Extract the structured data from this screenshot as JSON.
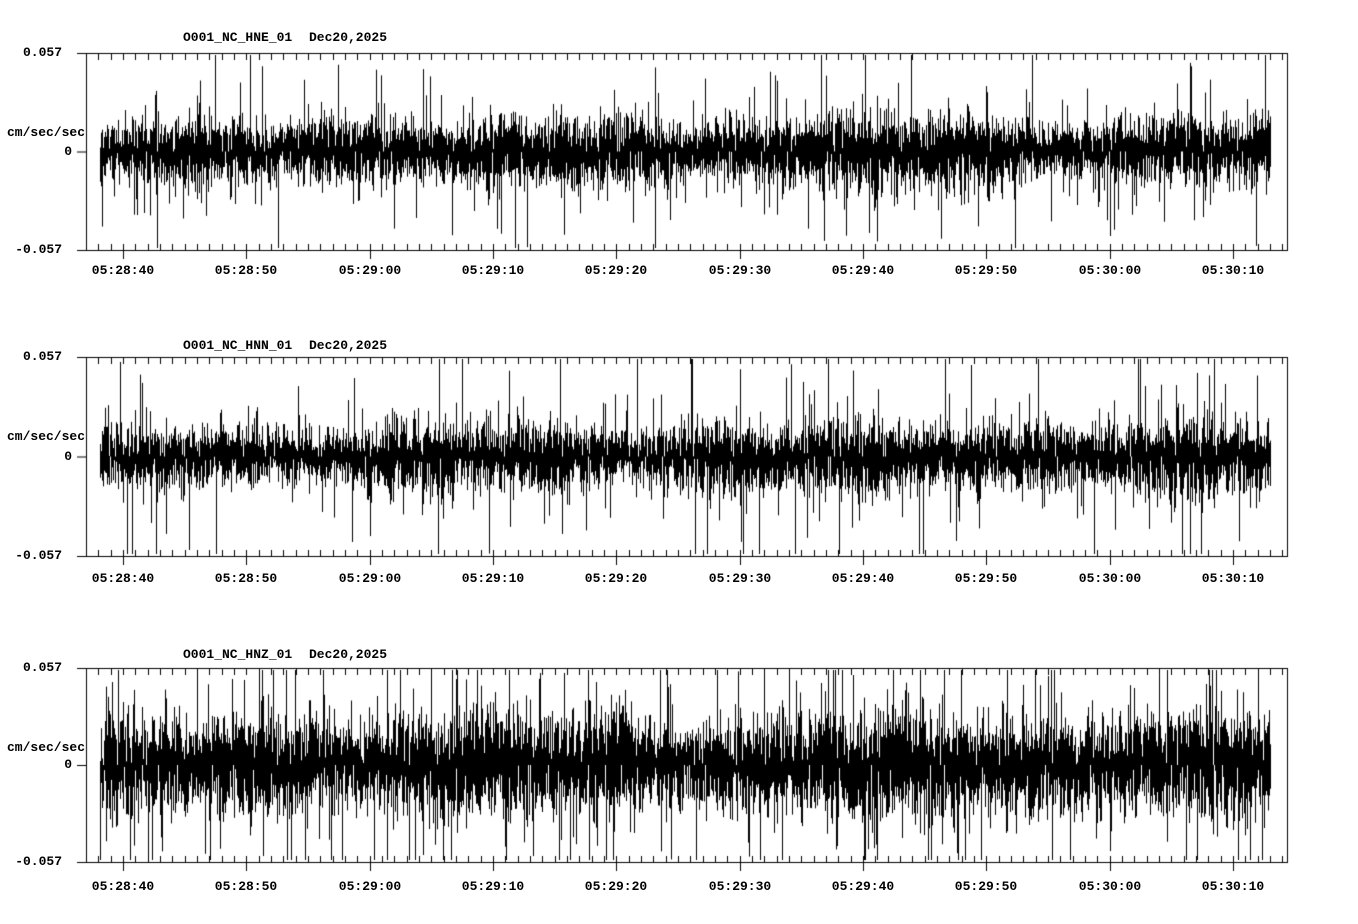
{
  "figure": {
    "background": "#ffffff",
    "trace_color": "#000000"
  },
  "chart_data": [
    {
      "type": "waveform",
      "station_label": "O001_NC_HNE_01",
      "date_label": "Dec20,2025",
      "ylabel": "cm/sec/sec",
      "ylim": [
        -0.057,
        0.057
      ],
      "ytick_labels": [
        "0.057",
        "0",
        "-0.057"
      ],
      "xtick_labels": [
        "05:28:40",
        "05:28:50",
        "05:29:00",
        "05:29:10",
        "05:29:20",
        "05:29:30",
        "05:29:40",
        "05:29:50",
        "05:30:00",
        "05:30:10"
      ],
      "xtick_interval_seconds": 10,
      "minor_tick_seconds": 1,
      "approx_rms": 0.009,
      "approx_peak": 0.04,
      "noise": {
        "seed": 20251,
        "sd": 0.0085,
        "spike_rate": 0.06,
        "spike_gain": 2.1,
        "bursts": [
          {
            "c": 0.22,
            "w": 0.05,
            "g": 0.28
          },
          {
            "c": 0.44,
            "w": 0.035,
            "g": 0.33
          },
          {
            "c": 0.55,
            "w": 0.03,
            "g": 0.28
          },
          {
            "c": 0.66,
            "w": 0.04,
            "g": 0.25
          },
          {
            "c": 0.74,
            "w": 0.04,
            "g": 0.3
          },
          {
            "c": 0.9,
            "w": 0.05,
            "g": 0.15
          }
        ]
      }
    },
    {
      "type": "waveform",
      "station_label": "O001_NC_HNN_01",
      "date_label": "Dec20,2025",
      "ylabel": "cm/sec/sec",
      "ylim": [
        -0.057,
        0.057
      ],
      "ytick_labels": [
        "0.057",
        "0",
        "-0.057"
      ],
      "xtick_labels": [
        "05:28:40",
        "05:28:50",
        "05:29:00",
        "05:29:10",
        "05:29:20",
        "05:29:30",
        "05:29:40",
        "05:29:50",
        "05:30:00",
        "05:30:10"
      ],
      "xtick_interval_seconds": 10,
      "minor_tick_seconds": 1,
      "approx_rms": 0.009,
      "approx_peak": 0.046,
      "noise": {
        "seed": 8842,
        "sd": 0.0085,
        "spike_rate": 0.05,
        "spike_gain": 2.4,
        "bursts": [
          {
            "c": 0.25,
            "w": 0.06,
            "g": 0.15
          },
          {
            "c": 0.5,
            "w": 0.05,
            "g": 0.25
          },
          {
            "c": 0.64,
            "w": 0.04,
            "g": 0.2
          },
          {
            "c": 0.78,
            "w": 0.06,
            "g": 0.3
          },
          {
            "c": 0.93,
            "w": 0.05,
            "g": 0.28
          }
        ]
      }
    },
    {
      "type": "waveform",
      "station_label": "O001_NC_HNZ_01",
      "date_label": "Dec20,2025",
      "ylabel": "cm/sec/sec",
      "ylim": [
        -0.057,
        0.057
      ],
      "ytick_labels": [
        "0.057",
        "0",
        "-0.057"
      ],
      "xtick_labels": [
        "05:28:40",
        "05:28:50",
        "05:29:00",
        "05:29:10",
        "05:29:20",
        "05:29:30",
        "05:29:40",
        "05:29:50",
        "05:30:00",
        "05:30:10"
      ],
      "xtick_interval_seconds": 10,
      "minor_tick_seconds": 1,
      "approx_rms": 0.014,
      "approx_peak": 0.055,
      "noise": {
        "seed": 31415,
        "sd": 0.0135,
        "spike_rate": 0.09,
        "spike_gain": 2.0,
        "bursts": [
          {
            "c": 0.3,
            "w": 0.08,
            "g": 0.12
          },
          {
            "c": 0.62,
            "w": 0.06,
            "g": 0.18
          },
          {
            "c": 0.85,
            "w": 0.07,
            "g": 0.12
          }
        ]
      }
    }
  ]
}
